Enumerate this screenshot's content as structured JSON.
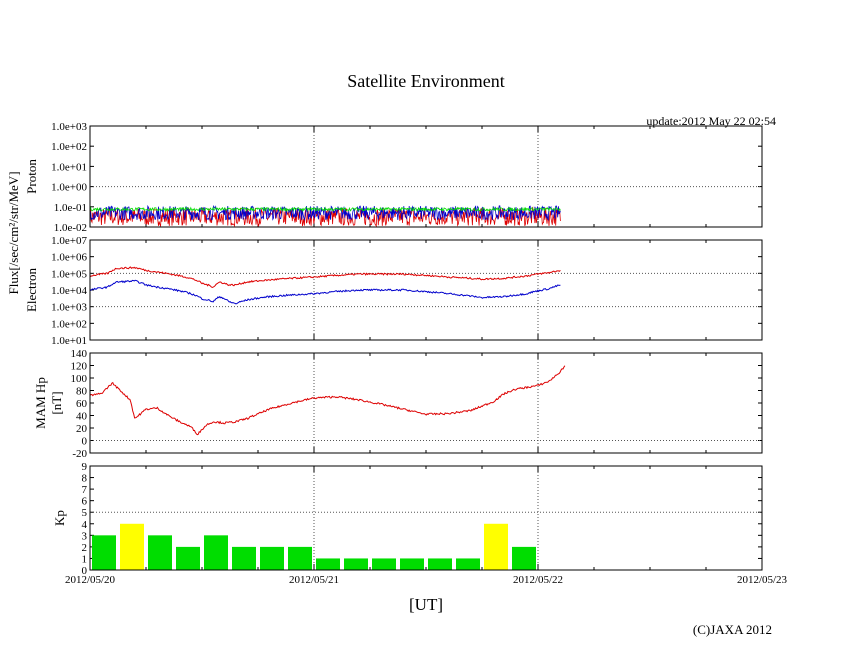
{
  "chart_data": {
    "type": "line",
    "title": "Satellite Environment",
    "update_text": "update:2012 May 22 02:54",
    "copyright": "(C)JAXA 2012",
    "xlabel": "[UT]",
    "x_ticks": [
      "2012/05/20",
      "2012/05/21",
      "2012/05/22",
      "2012/05/23"
    ],
    "xlim_days": [
      0,
      3
    ],
    "data_end_day": 2.1,
    "shared_ylabel": "Flux[/sec/cm²/str/MeV]",
    "colors": {
      "red": "#dd0000",
      "blue": "#0000cc",
      "green": "#00dd00",
      "yellow": "#ffff00",
      "grid": "#555555"
    },
    "panels": [
      {
        "id": "proton",
        "ylabel": "Proton",
        "scale": "log",
        "ylim_exp": [
          -2,
          3
        ],
        "y_ticks": [
          "1.0e-02",
          "1.0e-01",
          "1.0e+00",
          "1.0e+01",
          "1.0e+02",
          "1.0e+03"
        ],
        "series": [
          {
            "name": "proton-red",
            "color": "red",
            "base_log": -1.5,
            "noise": 0.45
          },
          {
            "name": "proton-blue",
            "color": "blue",
            "base_log": -1.3,
            "noise": 0.35
          },
          {
            "name": "proton-green",
            "color": "green",
            "base_log": -1.12,
            "noise": 0.08
          }
        ]
      },
      {
        "id": "electron",
        "ylabel": "Electron",
        "scale": "log",
        "ylim_exp": [
          1,
          7
        ],
        "y_ticks": [
          "1.0e+01",
          "1.0e+02",
          "1.0e+03",
          "1.0e+04",
          "1.0e+05",
          "1.0e+06",
          "1.0e+07"
        ],
        "series": [
          {
            "name": "electron-high",
            "color": "red",
            "x": [
              0,
              0.08,
              0.12,
              0.2,
              0.25,
              0.3,
              0.38,
              0.45,
              0.5,
              0.55,
              0.58,
              0.62,
              0.65,
              0.7,
              0.8,
              1.0,
              1.2,
              1.4,
              1.6,
              1.75,
              1.85,
              1.95,
              2.05,
              2.1
            ],
            "values": [
              70000.0,
              100000.0,
              200000.0,
              220000.0,
              150000.0,
              120000.0,
              80000.0,
              50000.0,
              25000.0,
              15000.0,
              30000.0,
              20000.0,
              20000.0,
              30000.0,
              40000.0,
              60000.0,
              90000.0,
              90000.0,
              60000.0,
              45000.0,
              50000.0,
              70000.0,
              110000.0,
              150000.0
            ]
          },
          {
            "name": "electron-low",
            "color": "blue",
            "x": [
              0,
              0.08,
              0.12,
              0.2,
              0.25,
              0.3,
              0.38,
              0.45,
              0.5,
              0.55,
              0.58,
              0.62,
              0.65,
              0.7,
              0.8,
              1.0,
              1.2,
              1.4,
              1.6,
              1.75,
              1.85,
              1.95,
              2.05,
              2.1
            ],
            "values": [
              10000.0,
              15000.0,
              30000.0,
              35000.0,
              20000.0,
              15000.0,
              10000.0,
              6000.0,
              3000.0,
              2000.0,
              4000.0,
              2000.0,
              1500.0,
              2500.0,
              4000.0,
              6000.0,
              10000.0,
              10000.0,
              6000.0,
              3500.0,
              4000.0,
              6000.0,
              12000.0,
              20000.0
            ]
          }
        ]
      },
      {
        "id": "mam-hp",
        "ylabel": "MAM Hp",
        "ylabel2": "[nT]",
        "scale": "linear",
        "ylim": [
          -20,
          140
        ],
        "y_ticks": [
          "-20",
          "0",
          "20",
          "40",
          "60",
          "80",
          "100",
          "120",
          "140"
        ],
        "series": [
          {
            "name": "mam-hp",
            "color": "red",
            "x": [
              0,
              0.05,
              0.1,
              0.15,
              0.18,
              0.2,
              0.25,
              0.3,
              0.35,
              0.4,
              0.45,
              0.48,
              0.52,
              0.55,
              0.6,
              0.65,
              0.7,
              0.8,
              0.9,
              1.0,
              1.1,
              1.2,
              1.3,
              1.4,
              1.5,
              1.6,
              1.7,
              1.75,
              1.8,
              1.85,
              1.9,
              2.0,
              2.05,
              2.1,
              2.12
            ],
            "values": [
              72,
              75,
              92,
              75,
              65,
              35,
              50,
              52,
              40,
              30,
              22,
              10,
              25,
              30,
              28,
              30,
              35,
              50,
              60,
              68,
              70,
              65,
              58,
              50,
              42,
              43,
              48,
              55,
              62,
              75,
              82,
              88,
              95,
              110,
              120
            ]
          }
        ]
      },
      {
        "id": "kp",
        "ylabel": "Kp",
        "scale": "bar",
        "ylim": [
          0,
          9
        ],
        "y_ticks": [
          "0",
          "1",
          "2",
          "3",
          "4",
          "5",
          "6",
          "7",
          "8",
          "9"
        ],
        "bar_width_days": 0.125,
        "values": [
          3,
          4,
          3,
          2,
          3,
          2,
          2,
          2,
          1,
          1,
          1,
          1,
          1,
          1,
          4,
          2
        ],
        "bar_colors": [
          "green",
          "yellow",
          "green",
          "green",
          "green",
          "green",
          "green",
          "green",
          "green",
          "green",
          "green",
          "green",
          "green",
          "green",
          "yellow",
          "green"
        ]
      }
    ]
  }
}
